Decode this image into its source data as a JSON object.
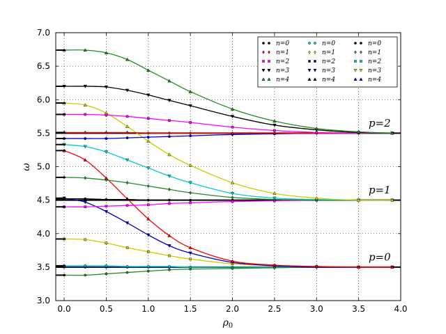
{
  "chart_data": {
    "type": "line",
    "xlabel": "ρ0",
    "ylabel": "ω",
    "xlim": [
      -0.1,
      4.0
    ],
    "ylim": [
      3.0,
      7.0
    ],
    "xticks": [
      "0.0",
      "0.5",
      "1.0",
      "1.5",
      "2.0",
      "2.5",
      "3.0",
      "3.5",
      "4.0"
    ],
    "yticks": [
      "3.0",
      "3.5",
      "4.0",
      "4.5",
      "5.0",
      "5.5",
      "6.0",
      "6.5",
      "7.0"
    ],
    "grid": true,
    "legend_position": "top-right",
    "legend_columns": 3,
    "legend_entries": [
      "n=0",
      "n=1",
      "n=2",
      "n=3",
      "n=4"
    ],
    "annotations": [
      {
        "text": "p=2",
        "x": 3.75,
        "y": 5.6
      },
      {
        "text": "p=1",
        "x": 3.75,
        "y": 4.6
      },
      {
        "text": "p=0",
        "x": 3.75,
        "y": 3.6
      }
    ],
    "asymptotes": [
      3.5,
      4.5,
      5.5
    ],
    "series": [
      {
        "color": "#00008b",
        "marker": "o",
        "x": [
          0,
          0.25,
          0.5,
          0.75,
          1.0,
          1.25,
          1.5,
          2.0,
          2.5,
          3.0,
          3.5,
          3.9
        ],
        "y": [
          3.5,
          3.5,
          3.5,
          3.5,
          3.5,
          3.5,
          3.5,
          3.5,
          3.5,
          3.5,
          3.5,
          3.5
        ]
      },
      {
        "color": "#00cccc",
        "marker": "o",
        "x": [
          0,
          0.25,
          0.5,
          0.75,
          1.0,
          1.25,
          1.5,
          2.0,
          2.5,
          3.0,
          3.5,
          3.9
        ],
        "y": [
          3.52,
          3.52,
          3.52,
          3.51,
          3.51,
          3.51,
          3.5,
          3.5,
          3.5,
          3.5,
          3.5,
          3.5
        ]
      },
      {
        "color": "#228b22",
        "marker": "o",
        "x": [
          0,
          0.25,
          0.5,
          0.75,
          1.0,
          1.25,
          1.5,
          2.0,
          2.5,
          3.0,
          3.5,
          3.9
        ],
        "y": [
          3.38,
          3.38,
          3.4,
          3.42,
          3.44,
          3.46,
          3.47,
          3.48,
          3.49,
          3.5,
          3.5,
          3.5
        ]
      },
      {
        "color": "#cccc00",
        "marker": "s",
        "x": [
          0,
          0.25,
          0.5,
          0.75,
          1.0,
          1.25,
          1.5,
          2.0,
          2.5,
          3.0,
          3.5,
          3.9
        ],
        "y": [
          3.92,
          3.91,
          3.86,
          3.79,
          3.73,
          3.67,
          3.62,
          3.55,
          3.52,
          3.51,
          3.5,
          3.5
        ]
      },
      {
        "color": "#0000cd",
        "marker": "v",
        "x": [
          0,
          0.25,
          0.5,
          0.75,
          1.0,
          1.25,
          1.5,
          2.0,
          2.5,
          3.0,
          3.5,
          3.9
        ],
        "y": [
          4.53,
          4.47,
          4.33,
          4.16,
          3.98,
          3.82,
          3.71,
          3.57,
          3.52,
          3.5,
          3.5,
          3.5
        ]
      },
      {
        "color": "#ff0000",
        "marker": "^",
        "x": [
          0,
          0.25,
          0.5,
          0.75,
          1.0,
          1.25,
          1.5,
          2.0,
          2.5,
          3.0,
          3.5,
          3.9
        ],
        "y": [
          5.24,
          5.1,
          4.83,
          4.52,
          4.22,
          3.97,
          3.79,
          3.59,
          3.53,
          3.51,
          3.5,
          3.5
        ]
      },
      {
        "color": "#000000",
        "marker": "o",
        "x": [
          0,
          0.25,
          0.5,
          0.75,
          1.0,
          1.25,
          1.5,
          2.0,
          2.5,
          3.0,
          3.5,
          3.9
        ],
        "y": [
          4.52,
          4.52,
          4.51,
          4.51,
          4.5,
          4.5,
          4.5,
          4.5,
          4.5,
          4.5,
          4.5,
          4.5
        ]
      },
      {
        "color": "#ff00ff",
        "marker": "s",
        "x": [
          0,
          0.25,
          0.5,
          0.75,
          1.0,
          1.25,
          1.5,
          2.0,
          2.5,
          3.0,
          3.5,
          3.9
        ],
        "y": [
          4.4,
          4.4,
          4.41,
          4.42,
          4.43,
          4.45,
          4.46,
          4.48,
          4.49,
          4.5,
          4.5,
          4.5
        ]
      },
      {
        "color": "#228b22",
        "marker": "d",
        "x": [
          0,
          0.25,
          0.5,
          0.75,
          1.0,
          1.25,
          1.5,
          2.0,
          2.5,
          3.0,
          3.5,
          3.9
        ],
        "y": [
          4.84,
          4.83,
          4.8,
          4.76,
          4.71,
          4.66,
          4.61,
          4.54,
          4.51,
          4.5,
          4.5,
          4.5
        ]
      },
      {
        "color": "#00cccc",
        "marker": "v",
        "x": [
          0,
          0.25,
          0.5,
          0.75,
          1.0,
          1.25,
          1.5,
          2.0,
          2.5,
          3.0,
          3.5,
          3.9
        ],
        "y": [
          5.33,
          5.3,
          5.22,
          5.1,
          4.98,
          4.86,
          4.76,
          4.6,
          4.53,
          4.51,
          4.5,
          4.5
        ]
      },
      {
        "color": "#cccc00",
        "marker": "^",
        "x": [
          0,
          0.25,
          0.5,
          0.75,
          1.0,
          1.25,
          1.5,
          2.0,
          2.5,
          3.0,
          3.5,
          3.9
        ],
        "y": [
          5.95,
          5.92,
          5.8,
          5.6,
          5.38,
          5.18,
          5.02,
          4.76,
          4.6,
          4.53,
          4.5,
          4.5
        ]
      },
      {
        "color": "#0000cd",
        "marker": "o",
        "x": [
          0,
          0.25,
          0.5,
          0.75,
          1.0,
          1.25,
          1.5,
          2.0,
          2.5,
          3.0,
          3.5,
          3.9
        ],
        "y": [
          5.42,
          5.42,
          5.42,
          5.43,
          5.44,
          5.45,
          5.46,
          5.48,
          5.49,
          5.5,
          5.5,
          5.5
        ]
      },
      {
        "color": "#ff0000",
        "marker": "d",
        "x": [
          0,
          0.25,
          0.5,
          0.75,
          1.0,
          1.25,
          1.5,
          2.0,
          2.5,
          3.0,
          3.5,
          3.9
        ],
        "y": [
          5.51,
          5.51,
          5.51,
          5.51,
          5.5,
          5.5,
          5.5,
          5.5,
          5.5,
          5.5,
          5.5,
          5.5
        ]
      },
      {
        "color": "#ff00ff",
        "marker": "s",
        "x": [
          0,
          0.25,
          0.5,
          0.75,
          1.0,
          1.25,
          1.5,
          2.0,
          2.5,
          3.0,
          3.5,
          3.9
        ],
        "y": [
          5.78,
          5.78,
          5.77,
          5.75,
          5.72,
          5.69,
          5.66,
          5.59,
          5.54,
          5.51,
          5.5,
          5.5
        ]
      },
      {
        "color": "#000000",
        "marker": "v",
        "x": [
          0,
          0.25,
          0.5,
          0.75,
          1.0,
          1.25,
          1.5,
          2.0,
          2.5,
          3.0,
          3.5,
          3.9
        ],
        "y": [
          6.2,
          6.2,
          6.19,
          6.14,
          6.07,
          5.99,
          5.91,
          5.75,
          5.62,
          5.55,
          5.51,
          5.5
        ]
      },
      {
        "color": "#228b22",
        "marker": "^",
        "x": [
          0,
          0.25,
          0.5,
          0.75,
          1.0,
          1.25,
          1.5,
          2.0,
          2.5,
          3.0,
          3.5,
          3.9
        ],
        "y": [
          6.74,
          6.74,
          6.7,
          6.6,
          6.44,
          6.28,
          6.12,
          5.86,
          5.68,
          5.57,
          5.52,
          5.5
        ]
      }
    ],
    "legend": [
      [
        {
          "text": "n=0",
          "color": "#000000",
          "marker": "o"
        },
        {
          "text": "n=1",
          "color": "#ff0000",
          "marker": "d"
        },
        {
          "text": "n=2",
          "color": "#ff00ff",
          "marker": "s"
        },
        {
          "text": "n=3",
          "color": "#000000",
          "marker": "v"
        },
        {
          "text": "n=4",
          "color": "#228b22",
          "marker": "^"
        }
      ],
      [
        {
          "text": "n=0",
          "color": "#00cccc",
          "marker": "o"
        },
        {
          "text": "n=1",
          "color": "#cccc00",
          "marker": "d"
        },
        {
          "text": "n=2",
          "color": "#0000cd",
          "marker": "s"
        },
        {
          "text": "n=3",
          "color": "#0000cd",
          "marker": "v"
        },
        {
          "text": "n=4",
          "color": "#000000",
          "marker": "^"
        }
      ],
      [
        {
          "text": "n=0",
          "color": "#000000",
          "marker": "o"
        },
        {
          "text": "n=1",
          "color": "#228b22",
          "marker": "d"
        },
        {
          "text": "n=2",
          "color": "#00cccc",
          "marker": "s"
        },
        {
          "text": "n=3",
          "color": "#cccc00",
          "marker": "v"
        },
        {
          "text": "n=4",
          "color": "#0000cd",
          "marker": "^"
        }
      ]
    ]
  }
}
